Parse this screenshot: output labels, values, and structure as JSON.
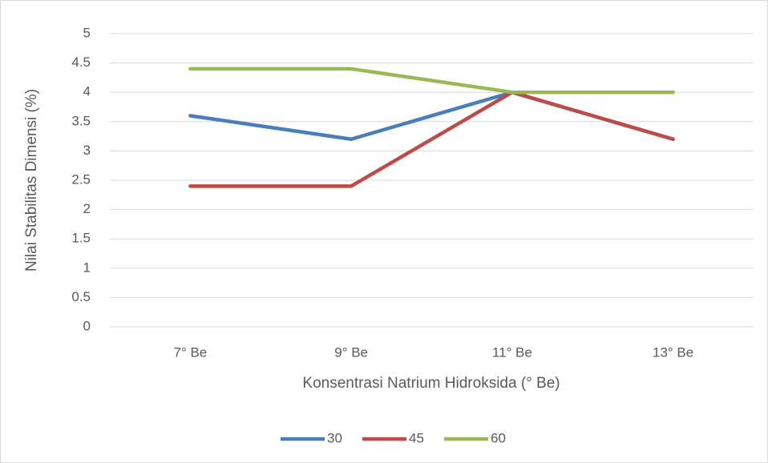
{
  "chart_data": {
    "type": "line",
    "y_label": "Nilai Stabilitas Dimensi (%)",
    "x_label": "Konsentrasi Natrium Hidroksida (° Be)",
    "categories": [
      "7° Be",
      "9° Be",
      "11° Be",
      "13° Be"
    ],
    "series": [
      {
        "name": "30",
        "color": "#4a7ebb",
        "values": [
          3.6,
          3.2,
          4.0,
          3.2
        ]
      },
      {
        "name": "45",
        "color": "#be4b48",
        "values": [
          2.4,
          2.4,
          4.0,
          3.2
        ]
      },
      {
        "name": "60",
        "color": "#98b954",
        "values": [
          4.4,
          4.4,
          4.0,
          4.0
        ]
      }
    ],
    "ylim": [
      0,
      5
    ],
    "yticks": [
      0,
      0.5,
      1,
      1.5,
      2,
      2.5,
      3,
      3.5,
      4,
      4.5,
      5
    ],
    "grid": true,
    "legend": "bottom"
  }
}
